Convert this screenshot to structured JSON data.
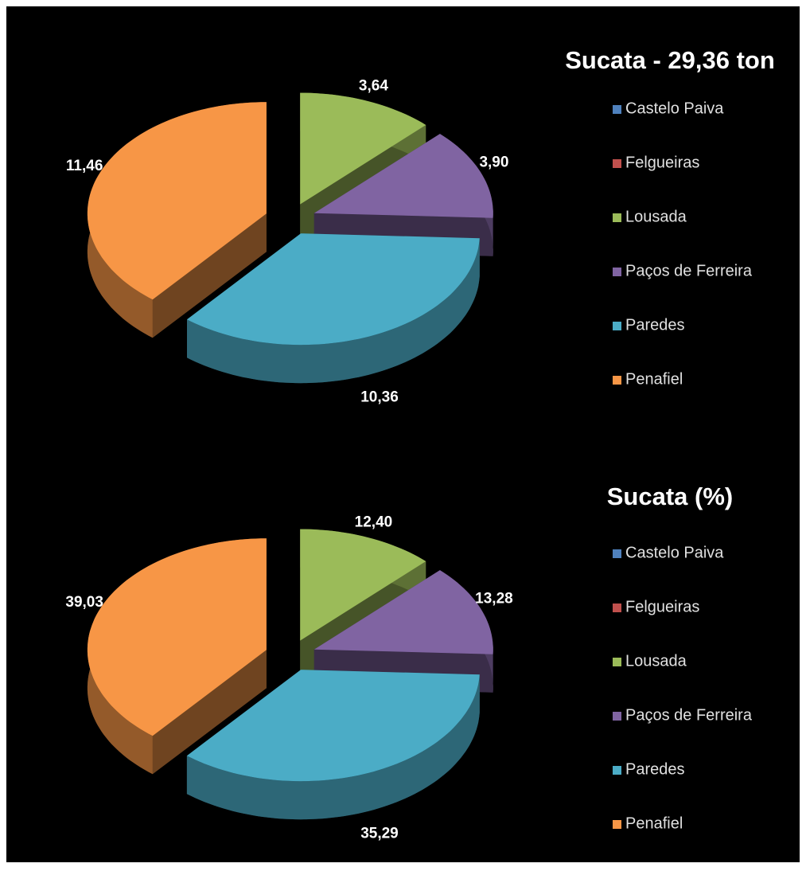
{
  "chart_data": [
    {
      "type": "pie",
      "title": "Sucata - 29,36 ton",
      "categories": [
        "Castelo Paiva",
        "Felgueiras",
        "Lousada",
        "Paços de Ferreira",
        "Paredes",
        "Penafiel"
      ],
      "values": [
        0,
        0,
        3.64,
        3.9,
        10.36,
        11.46
      ],
      "value_labels": [
        null,
        null,
        "3,64",
        "3,90",
        "10,36",
        "11,46"
      ],
      "colors": [
        "#4f81bd",
        "#c0504d",
        "#9bbb59",
        "#8064a2",
        "#4bacc6",
        "#f79646"
      ]
    },
    {
      "type": "pie",
      "title": "Sucata (%)",
      "categories": [
        "Castelo Paiva",
        "Felgueiras",
        "Lousada",
        "Paços de Ferreira",
        "Paredes",
        "Penafiel"
      ],
      "values": [
        0,
        0,
        12.4,
        13.28,
        35.29,
        39.03
      ],
      "value_labels": [
        null,
        null,
        "12,40",
        "13,28",
        "35,29",
        "39,03"
      ],
      "colors": [
        "#4f81bd",
        "#c0504d",
        "#9bbb59",
        "#8064a2",
        "#4bacc6",
        "#f79646"
      ]
    }
  ]
}
